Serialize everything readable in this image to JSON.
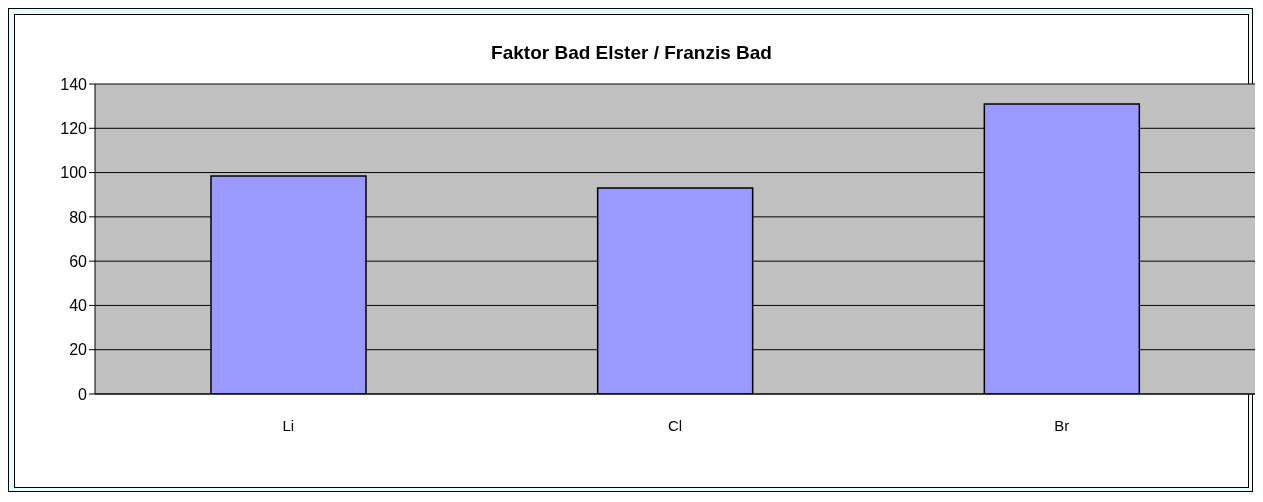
{
  "chart_data": {
    "type": "bar",
    "title": "Faktor Bad Elster / Franzis Bad",
    "categories": [
      "Li",
      "Cl",
      "Br"
    ],
    "values": [
      98.5,
      93,
      131
    ],
    "color": "#9999ff",
    "ylim": [
      0,
      140
    ],
    "yticks": [
      0,
      20,
      40,
      60,
      80,
      100,
      120,
      140
    ],
    "grid": "y",
    "legend": false
  }
}
